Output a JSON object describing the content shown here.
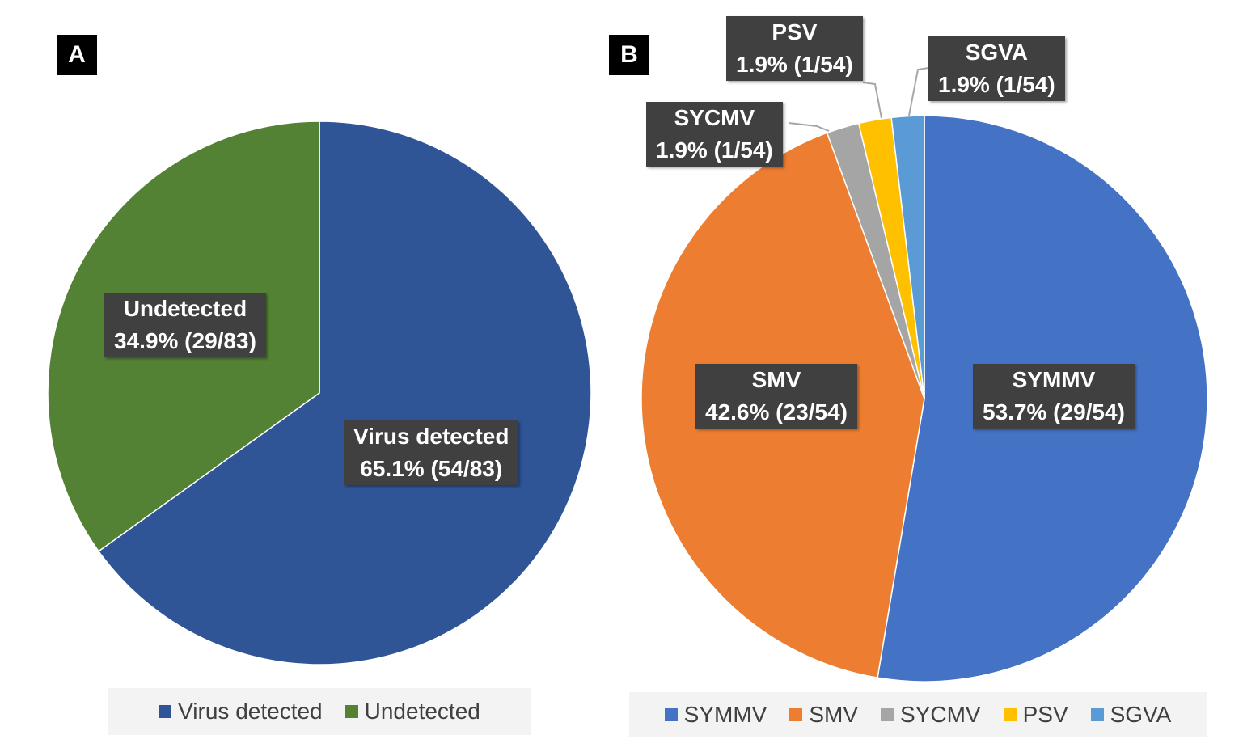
{
  "chart_data": [
    {
      "type": "pie",
      "panel": "A",
      "slices": [
        {
          "name": "Virus detected",
          "value": 65.1,
          "count": "54/83",
          "label_line1": "Virus detected",
          "label_line2": "65.1% (54/83)",
          "color": "#2f5597"
        },
        {
          "name": "Undetected",
          "value": 34.9,
          "count": "29/83",
          "label_line1": "Undetected",
          "label_line2": "34.9% (29/83)",
          "color": "#548235"
        }
      ],
      "legend": [
        "Virus detected",
        "Undetected"
      ],
      "legend_placement": "bottom"
    },
    {
      "type": "pie",
      "panel": "B",
      "slices": [
        {
          "name": "SYMMV",
          "value": 53.7,
          "count": "29/54",
          "label_line1": "SYMMV",
          "label_line2": "53.7% (29/54)",
          "color": "#4472c4"
        },
        {
          "name": "SMV",
          "value": 42.6,
          "count": "23/54",
          "label_line1": "SMV",
          "label_line2": "42.6% (23/54)",
          "color": "#ed7d31"
        },
        {
          "name": "SYCMV",
          "value": 1.9,
          "count": "1/54",
          "label_line1": "SYCMV",
          "label_line2": "1.9% (1/54)",
          "color": "#a5a5a5"
        },
        {
          "name": "PSV",
          "value": 1.9,
          "count": "1/54",
          "label_line1": "PSV",
          "label_line2": "1.9% (1/54)",
          "color": "#ffc000"
        },
        {
          "name": "SGVA",
          "value": 1.9,
          "count": "1/54",
          "label_line1": "SGVA",
          "label_line2": "1.9% (1/54)",
          "color": "#5b9bd5"
        }
      ],
      "legend": [
        "SYMMV",
        "SMV",
        "SYCMV",
        "PSV",
        "SGVA"
      ],
      "legend_placement": "bottom"
    }
  ]
}
